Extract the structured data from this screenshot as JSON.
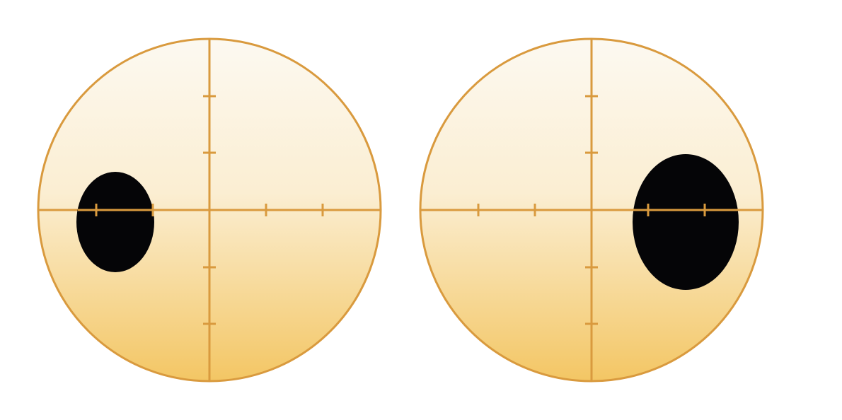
{
  "colors": {
    "background": "#ffffff",
    "gradient_top": "#fcf9f1",
    "gradient_bottom": "#f3c664",
    "outline": "#d99a3e",
    "spot": "#050507"
  },
  "fields": [
    {
      "name": "left-visual-field",
      "spot_side": "left",
      "spot_size": "small"
    },
    {
      "name": "right-visual-field",
      "spot_side": "right",
      "spot_size": "large"
    }
  ]
}
